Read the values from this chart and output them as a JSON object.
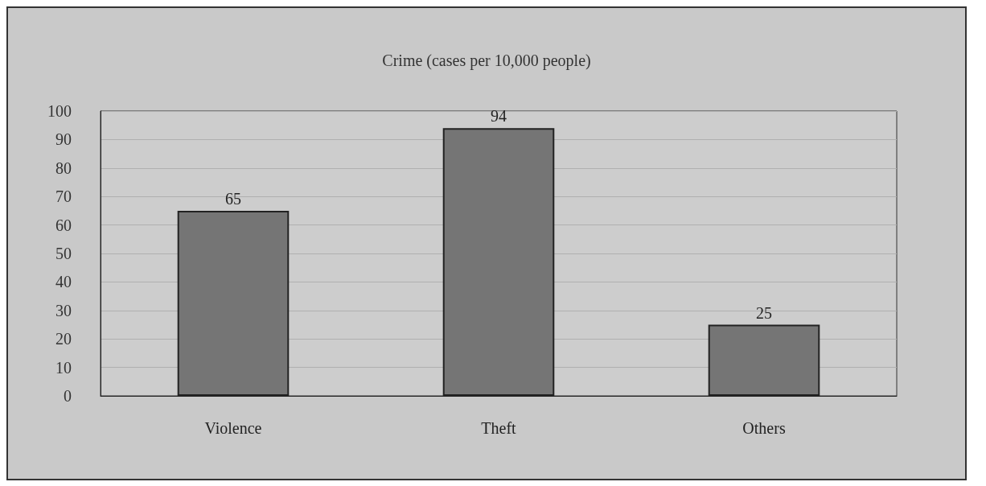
{
  "chart_data": {
    "type": "bar",
    "title": "Crime (cases per 10,000 people)",
    "categories": [
      "Violence",
      "Theft",
      "Others"
    ],
    "values": [
      65,
      94,
      25
    ],
    "color": "#757575",
    "ylim": [
      0,
      100
    ],
    "yticks": [
      0,
      10,
      20,
      30,
      40,
      50,
      60,
      70,
      80,
      90,
      100
    ],
    "grid": "y",
    "data_labels": true
  }
}
